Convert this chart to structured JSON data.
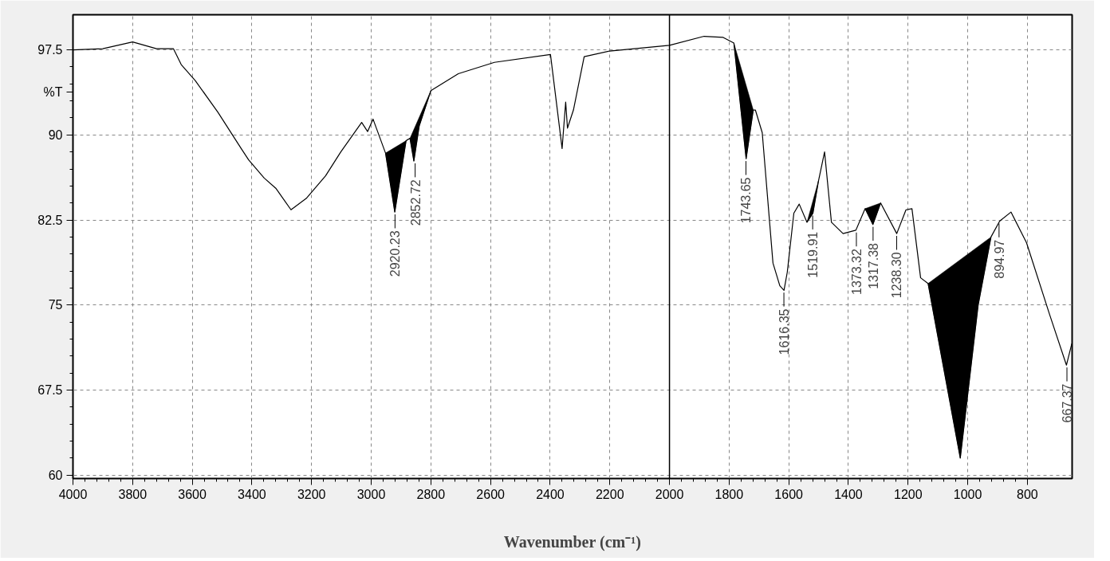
{
  "chart_data": {
    "type": "line",
    "xlabel": "Wavenumber (cm⁻¹)",
    "ylabel": "%T",
    "xlim": [
      4000,
      650
    ],
    "ylim": [
      59.7,
      100.6
    ],
    "xticks": [
      4000,
      3800,
      3600,
      3400,
      3200,
      3000,
      2800,
      2600,
      2400,
      2200,
      2000,
      1800,
      1600,
      1400,
      1200,
      1000,
      800
    ],
    "yticks": [
      60,
      67.5,
      75,
      82.5,
      90,
      97.5
    ],
    "grid": true,
    "line_style": "solid",
    "ref_lines": [
      {
        "axis": "x",
        "value": 2000,
        "color": "#000000",
        "line_style": "solid"
      }
    ],
    "series": [
      {
        "color": "#000000",
        "x": [
          4000,
          3900,
          3800,
          3720,
          3663,
          3637,
          3590,
          3514,
          3436,
          3411,
          3359,
          3320,
          3269,
          3218,
          3153,
          3102,
          3032,
          3012,
          2994,
          2952,
          2921,
          2883,
          2870,
          2857,
          2839,
          2800,
          2708,
          2587,
          2399,
          2360,
          2348,
          2342,
          2322,
          2286,
          2201,
          2000,
          1884,
          1820,
          1784,
          1743,
          1719,
          1712,
          1689,
          1653,
          1630,
          1616,
          1605,
          1583,
          1565,
          1539,
          1519,
          1500,
          1480,
          1457,
          1418,
          1375,
          1344,
          1318,
          1292,
          1238,
          1207,
          1187,
          1158,
          1133,
          1025,
          965,
          922,
          893,
          855,
          803,
          726,
          669,
          651
        ],
        "values": [
          97.5,
          97.6,
          98.2,
          97.6,
          97.6,
          96.2,
          94.8,
          92.0,
          88.8,
          87.8,
          86.2,
          85.3,
          83.4,
          84.4,
          86.4,
          88.5,
          91.1,
          90.3,
          91.4,
          88.4,
          83.2,
          89.5,
          89.7,
          87.7,
          90.8,
          93.9,
          95.4,
          96.4,
          97.1,
          88.8,
          92.9,
          90.6,
          92.2,
          96.9,
          97.4,
          97.9,
          98.7,
          98.6,
          98.1,
          87.9,
          92.2,
          92.2,
          90.2,
          78.7,
          76.7,
          76.3,
          77.9,
          83.1,
          83.9,
          82.3,
          83.1,
          86.0,
          88.5,
          82.3,
          81.3,
          81.6,
          83.5,
          82.1,
          84.0,
          81.3,
          83.4,
          83.5,
          77.4,
          76.9,
          61.5,
          75.0,
          81.0,
          82.4,
          83.2,
          80.5,
          74.2,
          69.7,
          71.6
        ]
      },
      {
        "type": "area",
        "color": "#000000",
        "x": [
          2952,
          2921,
          2883,
          2870
        ],
        "values": [
          88.4,
          83.2,
          89.5,
          89.7
        ]
      },
      {
        "type": "area",
        "color": "#000000",
        "x": [
          2870,
          2857,
          2839,
          2800
        ],
        "values": [
          89.7,
          87.7,
          90.8,
          93.9
        ]
      },
      {
        "type": "area",
        "color": "#000000",
        "x": [
          1784,
          1743,
          1719
        ],
        "values": [
          98.1,
          87.9,
          92.2
        ]
      },
      {
        "type": "area",
        "color": "#000000",
        "x": [
          1539,
          1519,
          1500
        ],
        "values": [
          82.3,
          83.1,
          86.0
        ]
      },
      {
        "type": "area",
        "color": "#000000",
        "x": [
          1344,
          1318,
          1292
        ],
        "values": [
          83.5,
          82.1,
          84.0
        ]
      },
      {
        "type": "area",
        "color": "#000000",
        "x": [
          1133,
          1025,
          965,
          922
        ],
        "values": [
          76.9,
          61.5,
          75.0,
          81.0
        ]
      }
    ],
    "annotations": [
      {
        "text": "2920.23",
        "x": 2920.23,
        "y": 83.2
      },
      {
        "text": "2852.72",
        "x": 2852.72,
        "y": 87.7
      },
      {
        "text": "1743.65",
        "x": 1743.65,
        "y": 87.9
      },
      {
        "text": "1616.35",
        "x": 1616.35,
        "y": 76.3
      },
      {
        "text": "1519.91",
        "x": 1519.91,
        "y": 83.1
      },
      {
        "text": "1373.32",
        "x": 1373.32,
        "y": 81.6
      },
      {
        "text": "1317.38",
        "x": 1317.38,
        "y": 82.1
      },
      {
        "text": "1238.30",
        "x": 1238.3,
        "y": 81.3
      },
      {
        "text": "894.97",
        "x": 894.97,
        "y": 82.4
      },
      {
        "text": "667.37",
        "x": 667.37,
        "y": 69.7
      }
    ]
  }
}
